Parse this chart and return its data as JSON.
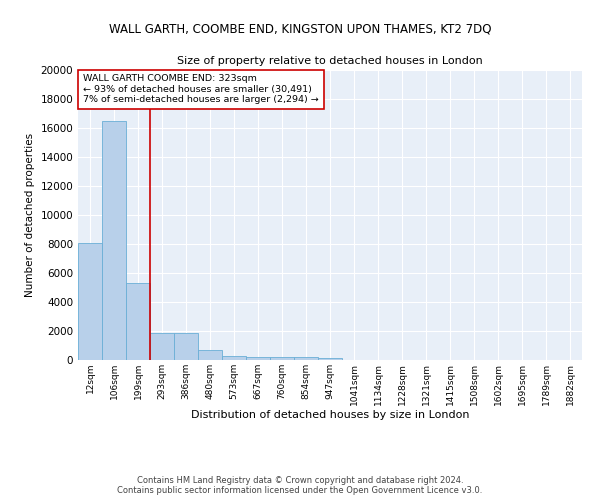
{
  "title": "WALL GARTH, COOMBE END, KINGSTON UPON THAMES, KT2 7DQ",
  "subtitle": "Size of property relative to detached houses in London",
  "xlabel": "Distribution of detached houses by size in London",
  "ylabel": "Number of detached properties",
  "categories": [
    "12sqm",
    "106sqm",
    "199sqm",
    "293sqm",
    "386sqm",
    "480sqm",
    "573sqm",
    "667sqm",
    "760sqm",
    "854sqm",
    "947sqm",
    "1041sqm",
    "1134sqm",
    "1228sqm",
    "1321sqm",
    "1415sqm",
    "1508sqm",
    "1602sqm",
    "1695sqm",
    "1789sqm",
    "1882sqm"
  ],
  "values": [
    8100,
    16500,
    5300,
    1850,
    1850,
    700,
    300,
    220,
    200,
    200,
    150,
    0,
    0,
    0,
    0,
    0,
    0,
    0,
    0,
    0,
    0
  ],
  "bar_color": "#b8d0ea",
  "bar_edge_color": "#6aaed6",
  "vline_x": 2.5,
  "vline_color": "#cc0000",
  "annotation_text": "WALL GARTH COOMBE END: 323sqm\n← 93% of detached houses are smaller (30,491)\n7% of semi-detached houses are larger (2,294) →",
  "annotation_box_color": "#ffffff",
  "annotation_box_edge_color": "#cc0000",
  "ylim": [
    0,
    20000
  ],
  "yticks": [
    0,
    2000,
    4000,
    6000,
    8000,
    10000,
    12000,
    14000,
    16000,
    18000,
    20000
  ],
  "bg_color": "#e8eff8",
  "footer_line1": "Contains HM Land Registry data © Crown copyright and database right 2024.",
  "footer_line2": "Contains public sector information licensed under the Open Government Licence v3.0."
}
